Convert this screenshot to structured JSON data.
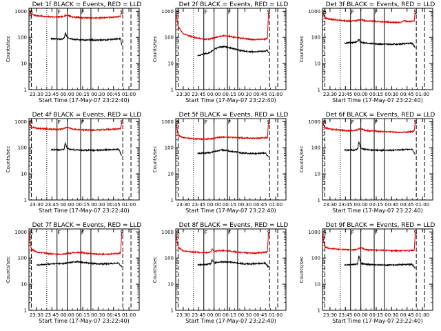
{
  "page": {
    "background": "#ffffff"
  },
  "colors": {
    "events": "#000000",
    "lld": "#e00000",
    "axes": "#000000"
  },
  "shared": {
    "ylabel": "Counts/sec",
    "xlabel": "Start Time (17-May-07 23:22:40)",
    "xticks": [
      "23:30",
      "23:45",
      "00:00",
      "00:15",
      "00:30",
      "00:45",
      "01:00"
    ],
    "yticks": [
      "1",
      "10",
      "100",
      "1000"
    ],
    "flags": {
      "left": "S",
      "mid1": "F",
      "mid2": "F",
      "right": "S"
    }
  },
  "chart_data": [
    {
      "type": "line",
      "title": "Det 1f BLACK = Events, RED = LLD",
      "xlim": [
        -7.33,
        100
      ],
      "ylim": [
        1,
        1300
      ],
      "yscale": "log",
      "data_range": [
        -7.33,
        83
      ],
      "markers": {
        "dashed": [
          -5,
          84,
          92
        ],
        "dotted": [
          10
        ],
        "solid": [
          20,
          30,
          43,
          53
        ]
      },
      "series": [
        {
          "name": "LLD",
          "color": "red",
          "x": [
            -7.2,
            -6,
            -5,
            0,
            10,
            20,
            25,
            30,
            35,
            40,
            45,
            50,
            55,
            60,
            65,
            70,
            75,
            80,
            82,
            83
          ],
          "y": [
            1000,
            900,
            750,
            680,
            620,
            600,
            620,
            720,
            600,
            590,
            560,
            560,
            550,
            560,
            570,
            580,
            600,
            620,
            650,
            1000
          ]
        },
        {
          "name": "Events",
          "color": "black",
          "x": [
            14,
            18,
            24,
            27,
            28,
            30,
            32,
            36,
            40,
            45,
            50,
            55,
            60,
            65,
            70,
            75,
            80,
            82,
            83
          ],
          "y": [
            90,
            88,
            85,
            92,
            150,
            100,
            90,
            85,
            82,
            80,
            80,
            80,
            78,
            80,
            82,
            85,
            88,
            90,
            50
          ]
        }
      ]
    },
    {
      "type": "line",
      "title": "Det 2f BLACK = Events, RED = LLD",
      "xlim": [
        -7.33,
        100
      ],
      "ylim": [
        1,
        1300
      ],
      "yscale": "log",
      "data_range": [
        -7.33,
        83
      ],
      "markers": {
        "dashed": [
          -5,
          84,
          92
        ],
        "dotted": [
          10
        ],
        "solid": [
          20,
          30,
          43,
          53
        ]
      },
      "series": [
        {
          "name": "LLD",
          "color": "red",
          "x": [
            -7.2,
            -6,
            -5,
            0,
            10,
            20,
            25,
            30,
            35,
            40,
            45,
            50,
            55,
            60,
            65,
            70,
            75,
            80,
            82,
            83
          ],
          "y": [
            900,
            500,
            250,
            140,
            100,
            85,
            85,
            95,
            110,
            115,
            110,
            100,
            95,
            90,
            85,
            82,
            85,
            85,
            95,
            900
          ]
        },
        {
          "name": "Events",
          "color": "black",
          "x": [
            14,
            18,
            24,
            27,
            30,
            35,
            40,
            45,
            50,
            55,
            60,
            65,
            70,
            75,
            80,
            82,
            83
          ],
          "y": [
            20,
            22,
            25,
            28,
            35,
            42,
            45,
            40,
            36,
            32,
            30,
            28,
            28,
            29,
            30,
            32,
            25
          ]
        }
      ]
    },
    {
      "type": "line",
      "title": "Det 3f BLACK = Events, RED = LLD",
      "xlim": [
        -7.33,
        100
      ],
      "ylim": [
        1,
        1300
      ],
      "yscale": "log",
      "data_range": [
        -7.33,
        83
      ],
      "markers": {
        "dashed": [
          -5,
          84,
          92
        ],
        "dotted": [
          10
        ],
        "solid": [
          20,
          30,
          43,
          53
        ]
      },
      "series": [
        {
          "name": "LLD",
          "color": "red",
          "x": [
            -7.2,
            -6,
            -5,
            0,
            10,
            20,
            25,
            30,
            35,
            40,
            45,
            50,
            55,
            60,
            65,
            70,
            72,
            75,
            80,
            82,
            83
          ],
          "y": [
            1000,
            700,
            550,
            500,
            450,
            420,
            430,
            480,
            430,
            420,
            410,
            400,
            390,
            380,
            370,
            380,
            450,
            400,
            410,
            420,
            1000
          ]
        },
        {
          "name": "Events",
          "color": "black",
          "x": [
            14,
            18,
            24,
            27,
            28,
            30,
            35,
            40,
            45,
            50,
            55,
            60,
            65,
            70,
            75,
            80,
            83
          ],
          "y": [
            60,
            62,
            65,
            70,
            85,
            65,
            60,
            58,
            57,
            56,
            55,
            55,
            56,
            57,
            58,
            60,
            40
          ]
        }
      ]
    },
    {
      "type": "line",
      "title": "Det 4f BLACK = Events, RED = LLD",
      "xlim": [
        -7.33,
        100
      ],
      "ylim": [
        1,
        1300
      ],
      "yscale": "log",
      "data_range": [
        -7.33,
        83
      ],
      "markers": {
        "dashed": [
          -5,
          84,
          92
        ],
        "dotted": [
          10
        ],
        "solid": [
          20,
          30,
          43,
          53
        ]
      },
      "series": [
        {
          "name": "LLD",
          "color": "red",
          "x": [
            -7.2,
            -6,
            -5,
            0,
            10,
            20,
            25,
            30,
            35,
            40,
            45,
            50,
            55,
            60,
            65,
            70,
            75,
            80,
            82,
            83
          ],
          "y": [
            1000,
            750,
            620,
            560,
            520,
            500,
            520,
            600,
            510,
            500,
            480,
            480,
            470,
            480,
            490,
            500,
            510,
            530,
            550,
            1000
          ]
        },
        {
          "name": "Events",
          "color": "black",
          "x": [
            14,
            18,
            24,
            27,
            28,
            30,
            32,
            36,
            40,
            45,
            50,
            55,
            60,
            65,
            70,
            75,
            80,
            83
          ],
          "y": [
            85,
            84,
            82,
            90,
            150,
            95,
            88,
            84,
            82,
            80,
            80,
            80,
            80,
            82,
            84,
            86,
            88,
            50
          ]
        }
      ]
    },
    {
      "type": "line",
      "title": "Det 5f BLACK = Events, RED = LLD",
      "xlim": [
        -7.33,
        100
      ],
      "ylim": [
        1,
        1300
      ],
      "yscale": "log",
      "data_range": [
        -7.33,
        83
      ],
      "markers": {
        "dashed": [
          -5,
          84,
          92
        ],
        "dotted": [
          10
        ],
        "solid": [
          20,
          30,
          43,
          53
        ]
      },
      "series": [
        {
          "name": "LLD",
          "color": "red",
          "x": [
            -7.2,
            -6,
            -5,
            0,
            10,
            20,
            25,
            30,
            35,
            40,
            45,
            50,
            55,
            60,
            65,
            70,
            75,
            80,
            82,
            83
          ],
          "y": [
            1000,
            500,
            300,
            240,
            220,
            210,
            215,
            230,
            250,
            255,
            250,
            245,
            240,
            235,
            230,
            230,
            235,
            240,
            250,
            1000
          ]
        },
        {
          "name": "Events",
          "color": "black",
          "x": [
            14,
            18,
            24,
            27,
            30,
            35,
            40,
            45,
            50,
            55,
            60,
            65,
            70,
            75,
            80,
            83
          ],
          "y": [
            60,
            62,
            64,
            66,
            70,
            80,
            82,
            75,
            70,
            65,
            62,
            60,
            60,
            61,
            62,
            45
          ]
        }
      ]
    },
    {
      "type": "line",
      "title": "Det 6f BLACK = Events, RED = LLD",
      "xlim": [
        -7.33,
        100
      ],
      "ylim": [
        1,
        1300
      ],
      "yscale": "log",
      "data_range": [
        -7.33,
        83
      ],
      "markers": {
        "dashed": [
          -5,
          84,
          92
        ],
        "dotted": [
          10
        ],
        "solid": [
          20,
          30,
          43,
          53
        ]
      },
      "series": [
        {
          "name": "LLD",
          "color": "red",
          "x": [
            -7.2,
            -6,
            -5,
            0,
            10,
            20,
            25,
            30,
            35,
            40,
            45,
            50,
            55,
            60,
            65,
            70,
            75,
            80,
            82,
            83
          ],
          "y": [
            1000,
            700,
            580,
            520,
            470,
            440,
            460,
            540,
            450,
            440,
            430,
            420,
            410,
            400,
            390,
            390,
            400,
            410,
            430,
            1000
          ]
        },
        {
          "name": "Events",
          "color": "black",
          "x": [
            14,
            18,
            24,
            27,
            28,
            30,
            35,
            40,
            45,
            50,
            55,
            60,
            65,
            70,
            75,
            80,
            83
          ],
          "y": [
            80,
            80,
            82,
            90,
            170,
            95,
            85,
            82,
            80,
            80,
            80,
            80,
            82,
            84,
            85,
            88,
            55
          ]
        }
      ]
    },
    {
      "type": "line",
      "title": "Det 7f BLACK = Events, RED = LLD",
      "xlim": [
        -7.33,
        100
      ],
      "ylim": [
        1,
        1300
      ],
      "yscale": "log",
      "data_range": [
        -7.33,
        83
      ],
      "markers": {
        "dashed": [
          -5,
          84,
          92
        ],
        "dotted": [
          10
        ],
        "solid": [
          20,
          30,
          43,
          53
        ]
      },
      "series": [
        {
          "name": "LLD",
          "color": "red",
          "x": [
            -7.2,
            -6,
            -5,
            0,
            10,
            20,
            25,
            30,
            35,
            40,
            45,
            50,
            55,
            60,
            65,
            70,
            75,
            80,
            82,
            83
          ],
          "y": [
            1000,
            400,
            220,
            170,
            150,
            140,
            140,
            150,
            160,
            165,
            160,
            150,
            145,
            140,
            140,
            140,
            145,
            150,
            160,
            1000
          ]
        },
        {
          "name": "Events",
          "color": "black",
          "x": [
            0,
            5,
            10,
            15,
            20,
            25,
            30,
            35,
            40,
            45,
            50,
            55,
            60,
            65,
            70,
            75,
            80,
            83
          ],
          "y": [
            55,
            55,
            58,
            60,
            62,
            60,
            65,
            70,
            72,
            68,
            65,
            62,
            60,
            60,
            61,
            62,
            64,
            45
          ]
        }
      ]
    },
    {
      "type": "line",
      "title": "Det 8f BLACK = Events, RED = LLD",
      "xlim": [
        -7.33,
        100
      ],
      "ylim": [
        1,
        1300
      ],
      "yscale": "log",
      "data_range": [
        -7.33,
        83
      ],
      "markers": {
        "dashed": [
          -5,
          84,
          92
        ],
        "dotted": [
          10
        ],
        "solid": [
          20,
          30,
          43,
          53
        ]
      },
      "series": [
        {
          "name": "LLD",
          "color": "red",
          "x": [
            -7.2,
            -6,
            -5,
            0,
            10,
            20,
            25,
            27,
            28,
            30,
            35,
            40,
            45,
            50,
            55,
            60,
            65,
            70,
            75,
            80,
            82,
            83
          ],
          "y": [
            1000,
            450,
            260,
            190,
            170,
            160,
            165,
            175,
            230,
            180,
            190,
            195,
            185,
            175,
            165,
            160,
            155,
            155,
            160,
            165,
            175,
            1000
          ]
        },
        {
          "name": "Events",
          "color": "black",
          "x": [
            14,
            18,
            24,
            27,
            28,
            30,
            35,
            40,
            45,
            50,
            55,
            60,
            65,
            70,
            75,
            80,
            83
          ],
          "y": [
            55,
            56,
            58,
            62,
            90,
            65,
            70,
            72,
            70,
            66,
            63,
            60,
            60,
            61,
            62,
            64,
            45
          ]
        }
      ]
    },
    {
      "type": "line",
      "title": "Det 9f BLACK = Events, RED = LLD",
      "xlim": [
        -7.33,
        100
      ],
      "ylim": [
        1,
        1300
      ],
      "yscale": "log",
      "data_range": [
        -7.33,
        83
      ],
      "markers": {
        "dashed": [
          -5,
          84,
          92
        ],
        "dotted": [
          10
        ],
        "solid": [
          20,
          30,
          43,
          53
        ]
      },
      "series": [
        {
          "name": "LLD",
          "color": "red",
          "x": [
            -7.2,
            -6,
            -5,
            0,
            10,
            20,
            25,
            30,
            35,
            40,
            45,
            50,
            55,
            60,
            65,
            70,
            75,
            80,
            82,
            83
          ],
          "y": [
            1000,
            400,
            260,
            230,
            215,
            205,
            210,
            250,
            210,
            205,
            200,
            198,
            195,
            192,
            190,
            190,
            192,
            195,
            205,
            1000
          ]
        },
        {
          "name": "Events",
          "color": "black",
          "x": [
            14,
            18,
            24,
            27,
            28,
            30,
            35,
            40,
            45,
            50,
            55,
            60,
            65,
            70,
            75,
            80,
            83
          ],
          "y": [
            55,
            55,
            57,
            60,
            130,
            62,
            58,
            56,
            55,
            55,
            54,
            54,
            55,
            56,
            57,
            58,
            40
          ]
        }
      ]
    }
  ]
}
